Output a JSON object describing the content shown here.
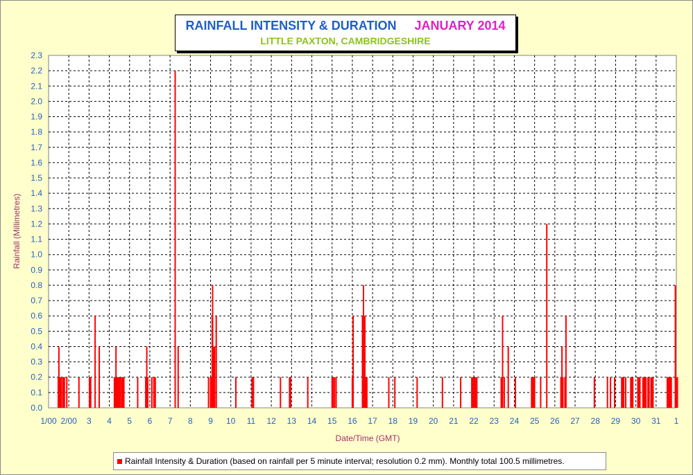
{
  "title": {
    "main": "RAINFALL INTENSITY & DURATION",
    "month": "JANUARY 2014",
    "subtitle": "LITTLE PAXTON, CAMBRIDGESHIRE"
  },
  "legend": {
    "label": "Rainfall Intensity & Duration (based on rainfall per 5 minute interval; resolution 0.2 mm). Monthly total 100.5 millimetres."
  },
  "colors": {
    "background": "#ffffcc",
    "bars": "#ff0000",
    "title_main": "#1f5fc4",
    "title_month": "#e020c8",
    "subtitle": "#8cc21c",
    "ticks": "#1f5fc4",
    "axis_titles": "#a0306c"
  },
  "chart_data": {
    "type": "bar",
    "xlabel": "Date/Time (GMT)",
    "ylabel": "Rainfall (Millimetres)",
    "ylim": [
      0,
      2.3
    ],
    "y_ticks": [
      "0.0",
      "0.1",
      "0.2",
      "0.3",
      "0.4",
      "0.5",
      "0.6",
      "0.7",
      "0.8",
      "0.9",
      "1.0",
      "1.1",
      "1.2",
      "1.3",
      "1.4",
      "1.5",
      "1.6",
      "1.7",
      "1.8",
      "1.9",
      "2.0",
      "2.1",
      "2.2",
      "2.3"
    ],
    "xlim": [
      1,
      32
    ],
    "x_tick_labels": [
      "1/00",
      "2/00",
      "3",
      "4",
      "5",
      "6",
      "7",
      "8",
      "9",
      "10",
      "11",
      "12",
      "13",
      "14",
      "15",
      "16",
      "17",
      "18",
      "19",
      "20",
      "21",
      "22",
      "23",
      "24",
      "25",
      "26",
      "27",
      "28",
      "29",
      "30",
      "31",
      "1"
    ],
    "grid": true,
    "x_unit": "day of month (fractional)",
    "series": [
      {
        "values": [
          [
            1.48,
            0.2
          ],
          [
            1.51,
            0.4
          ],
          [
            1.54,
            0.2
          ],
          [
            1.58,
            0.2
          ],
          [
            1.62,
            0.2
          ],
          [
            1.7,
            0.2
          ],
          [
            1.74,
            0.2
          ],
          [
            1.78,
            0.2
          ],
          [
            1.9,
            0.2
          ],
          [
            2.5,
            0.2
          ],
          [
            3.02,
            0.2
          ],
          [
            3.08,
            0.2
          ],
          [
            3.3,
            0.6
          ],
          [
            3.5,
            0.4
          ],
          [
            4.25,
            0.2
          ],
          [
            4.29,
            0.2
          ],
          [
            4.33,
            0.4
          ],
          [
            4.38,
            0.2
          ],
          [
            4.44,
            0.2
          ],
          [
            4.5,
            0.2
          ],
          [
            4.55,
            0.2
          ],
          [
            4.62,
            0.2
          ],
          [
            4.68,
            0.2
          ],
          [
            4.72,
            0.2
          ],
          [
            5.4,
            0.2
          ],
          [
            5.8,
            0.2
          ],
          [
            5.85,
            0.4
          ],
          [
            5.9,
            0.2
          ],
          [
            6.1,
            0.2
          ],
          [
            6.2,
            0.2
          ],
          [
            6.27,
            0.2
          ],
          [
            7.25,
            2.2
          ],
          [
            7.4,
            0.4
          ],
          [
            8.9,
            0.2
          ],
          [
            9.0,
            0.2
          ],
          [
            9.05,
            0.2
          ],
          [
            9.08,
            0.6
          ],
          [
            9.1,
            0.8
          ],
          [
            9.15,
            0.4
          ],
          [
            9.2,
            0.4
          ],
          [
            9.28,
            0.6
          ],
          [
            10.25,
            0.2
          ],
          [
            11.05,
            0.2
          ],
          [
            11.12,
            0.2
          ],
          [
            12.45,
            0.2
          ],
          [
            12.9,
            0.2
          ],
          [
            12.95,
            0.2
          ],
          [
            13.8,
            0.2
          ],
          [
            15.0,
            0.2
          ],
          [
            15.05,
            0.2
          ],
          [
            15.12,
            0.2
          ],
          [
            15.2,
            0.2
          ],
          [
            16.0,
            0.2
          ],
          [
            16.04,
            0.6
          ],
          [
            16.5,
            0.6
          ],
          [
            16.55,
            0.8
          ],
          [
            16.58,
            0.2
          ],
          [
            16.62,
            0.6
          ],
          [
            16.66,
            0.2
          ],
          [
            16.72,
            0.2
          ],
          [
            17.8,
            0.2
          ],
          [
            18.1,
            0.2
          ],
          [
            19.2,
            0.2
          ],
          [
            20.45,
            0.2
          ],
          [
            21.35,
            0.2
          ],
          [
            21.9,
            0.2
          ],
          [
            21.95,
            0.2
          ],
          [
            22.02,
            0.2
          ],
          [
            22.08,
            0.2
          ],
          [
            22.15,
            0.2
          ],
          [
            23.35,
            0.2
          ],
          [
            23.42,
            0.6
          ],
          [
            23.5,
            0.2
          ],
          [
            23.7,
            0.4
          ],
          [
            24.05,
            0.2
          ],
          [
            24.85,
            0.2
          ],
          [
            24.9,
            0.2
          ],
          [
            24.95,
            0.2
          ],
          [
            25.0,
            0.2
          ],
          [
            25.3,
            0.2
          ],
          [
            25.6,
            1.2
          ],
          [
            26.3,
            0.2
          ],
          [
            26.35,
            0.4
          ],
          [
            26.4,
            0.2
          ],
          [
            26.5,
            0.2
          ],
          [
            26.55,
            0.6
          ],
          [
            27.95,
            0.2
          ],
          [
            28.6,
            0.2
          ],
          [
            28.75,
            0.2
          ],
          [
            28.95,
            0.2
          ],
          [
            29.3,
            0.2
          ],
          [
            29.35,
            0.2
          ],
          [
            29.4,
            0.2
          ],
          [
            29.5,
            0.2
          ],
          [
            29.75,
            0.2
          ],
          [
            29.8,
            0.2
          ],
          [
            29.85,
            0.2
          ],
          [
            30.1,
            0.2
          ],
          [
            30.15,
            0.2
          ],
          [
            30.2,
            0.2
          ],
          [
            30.35,
            0.2
          ],
          [
            30.4,
            0.2
          ],
          [
            30.45,
            0.2
          ],
          [
            30.5,
            0.2
          ],
          [
            30.6,
            0.2
          ],
          [
            30.65,
            0.2
          ],
          [
            30.75,
            0.2
          ],
          [
            30.8,
            0.2
          ],
          [
            30.85,
            0.2
          ],
          [
            31.55,
            0.2
          ],
          [
            31.6,
            0.2
          ],
          [
            31.65,
            0.2
          ],
          [
            31.7,
            0.2
          ],
          [
            31.75,
            0.2
          ],
          [
            31.95,
            0.8
          ],
          [
            32.0,
            0.2
          ],
          [
            32.05,
            0.2
          ]
        ]
      }
    ]
  }
}
